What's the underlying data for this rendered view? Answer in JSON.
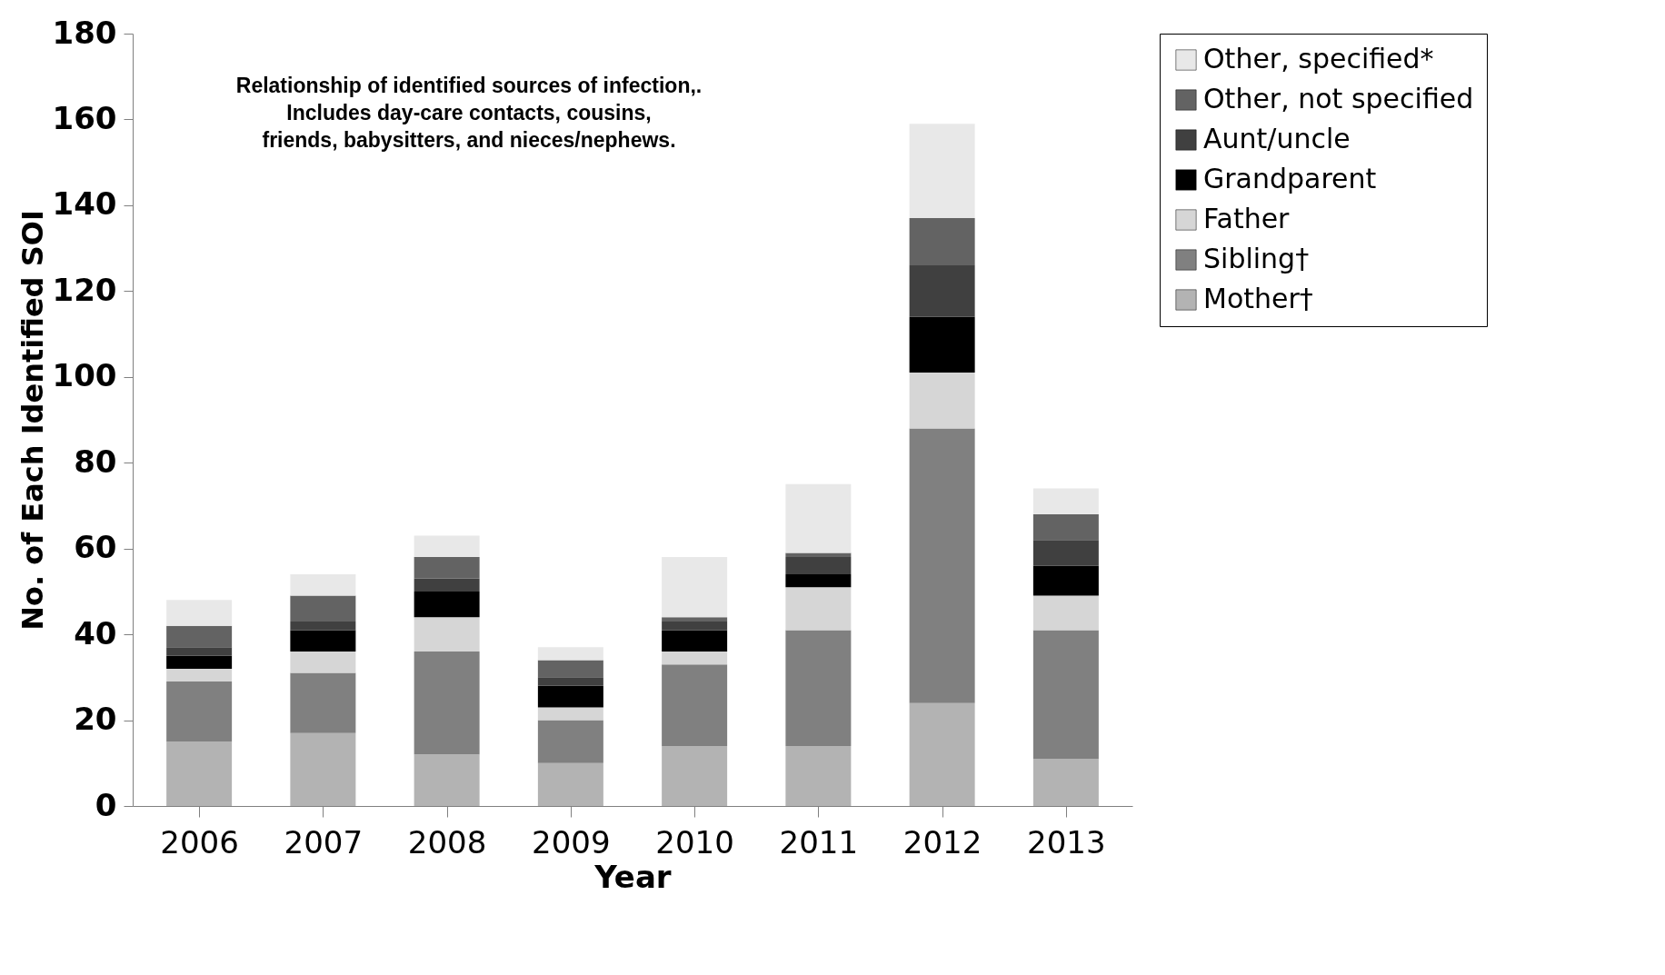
{
  "chart_data": {
    "type": "bar",
    "stacked": true,
    "xlabel": "Year",
    "ylabel": "No. of Each Identified SOI",
    "categories": [
      "2006",
      "2007",
      "2008",
      "2009",
      "2010",
      "2011",
      "2012",
      "2013"
    ],
    "series": [
      {
        "name": "Mother†",
        "color": "#b3b3b3",
        "values": [
          15,
          17,
          12,
          10,
          14,
          14,
          24,
          11
        ]
      },
      {
        "name": "Sibling†",
        "color": "#808080",
        "values": [
          14,
          14,
          24,
          10,
          19,
          27,
          64,
          30
        ]
      },
      {
        "name": "Father",
        "color": "#d6d6d6",
        "values": [
          3,
          5,
          8,
          3,
          3,
          10,
          13,
          8
        ]
      },
      {
        "name": "Grandparent",
        "color": "#000000",
        "values": [
          3,
          5,
          6,
          5,
          5,
          3,
          13,
          7
        ]
      },
      {
        "name": "Aunt/uncle",
        "color": "#404040",
        "values": [
          2,
          2,
          3,
          2,
          2,
          4,
          12,
          6
        ]
      },
      {
        "name": "Other, not specified",
        "color": "#636363",
        "values": [
          5,
          6,
          5,
          4,
          1,
          1,
          11,
          6
        ]
      },
      {
        "name": "Other, specified*",
        "color": "#e8e8e8",
        "values": [
          6,
          5,
          5,
          3,
          14,
          16,
          22,
          6
        ]
      }
    ],
    "ylim": [
      0,
      180
    ],
    "yticks": [
      0,
      20,
      40,
      60,
      80,
      100,
      120,
      140,
      160,
      180
    ],
    "grid": false,
    "legend": "right",
    "annotations": [
      "Relationship of identified sources of infection,.",
      "Includes day-care contacts, cousins,",
      "friends, babysitters, and nieces/nephews."
    ]
  }
}
